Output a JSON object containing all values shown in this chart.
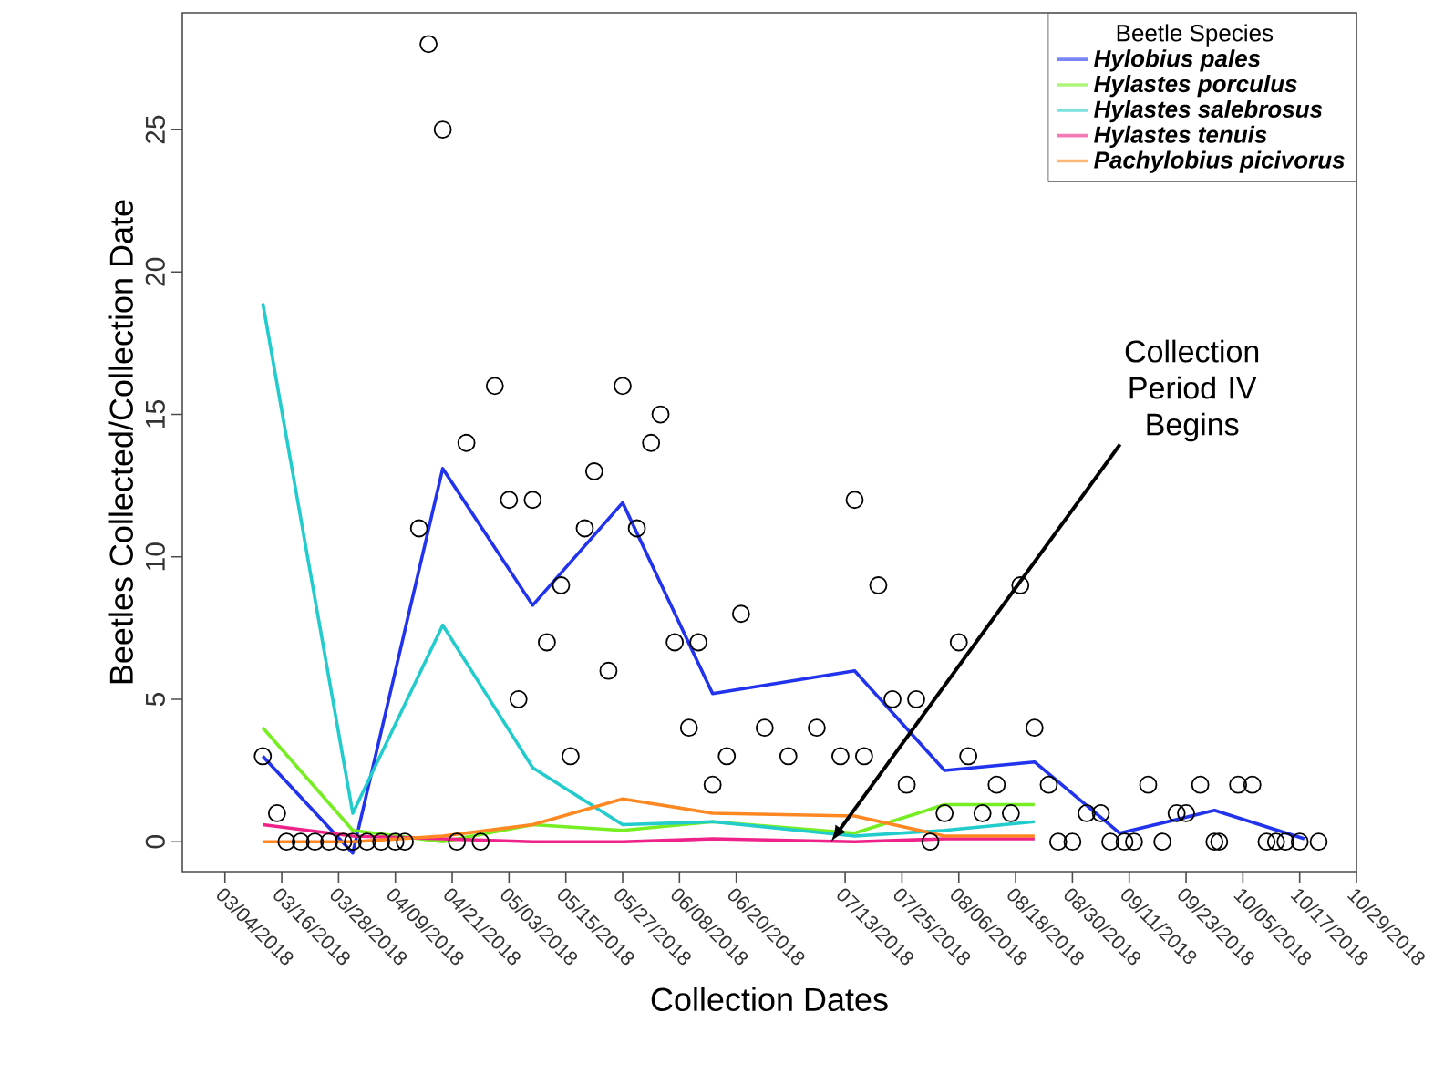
{
  "chart_data": {
    "type": "line",
    "xlabel": "Collection Dates",
    "ylabel": "Beetles Collected/Collection Date",
    "legend_title": "Beetle Species",
    "legend": "top right",
    "xlim": [
      "2018-02-23",
      "2018-10-29"
    ],
    "ylim": [
      -1.05,
      29.1
    ],
    "xticks": [
      {
        "value": "2018-03-04",
        "label": "03/04/2018"
      },
      {
        "value": "2018-03-16",
        "label": "03/16/2018"
      },
      {
        "value": "2018-03-28",
        "label": "03/28/2018"
      },
      {
        "value": "2018-04-09",
        "label": "04/09/2018"
      },
      {
        "value": "2018-04-21",
        "label": "04/21/2018"
      },
      {
        "value": "2018-05-03",
        "label": "05/03/2018"
      },
      {
        "value": "2018-05-15",
        "label": "05/15/2018"
      },
      {
        "value": "2018-05-27",
        "label": "05/27/2018"
      },
      {
        "value": "2018-06-08",
        "label": "06/08/2018"
      },
      {
        "value": "2018-06-20",
        "label": "06/20/2018"
      },
      {
        "value": "2018-07-13",
        "label": "07/13/2018"
      },
      {
        "value": "2018-07-25",
        "label": "07/25/2018"
      },
      {
        "value": "2018-08-06",
        "label": "08/06/2018"
      },
      {
        "value": "2018-08-18",
        "label": "08/18/2018"
      },
      {
        "value": "2018-08-30",
        "label": "08/30/2018"
      },
      {
        "value": "2018-09-11",
        "label": "09/11/2018"
      },
      {
        "value": "2018-09-23",
        "label": "09/23/2018"
      },
      {
        "value": "2018-10-05",
        "label": "10/05/2018"
      },
      {
        "value": "2018-10-17",
        "label": "10/17/2018"
      },
      {
        "value": "2018-10-29",
        "label": "10/29/2018"
      }
    ],
    "yticks": [
      0,
      5,
      10,
      15,
      20,
      25
    ],
    "annotations": [
      {
        "text": "Collection Period IV Begins",
        "x": "2018-07-10",
        "y": 0
      }
    ],
    "series": [
      {
        "type": "scatter",
        "marker": "circle",
        "color": "#000000",
        "x": [
          "2018-03-12",
          "2018-03-15",
          "2018-03-17",
          "2018-03-20",
          "2018-03-23",
          "2018-03-26",
          "2018-03-29",
          "2018-03-31",
          "2018-04-03",
          "2018-04-06",
          "2018-04-09",
          "2018-04-11",
          "2018-04-14",
          "2018-04-16",
          "2018-04-19",
          "2018-04-22",
          "2018-04-24",
          "2018-04-27",
          "2018-04-30",
          "2018-05-03",
          "2018-05-05",
          "2018-05-08",
          "2018-05-11",
          "2018-05-14",
          "2018-05-16",
          "2018-05-19",
          "2018-05-21",
          "2018-05-24",
          "2018-05-27",
          "2018-05-30",
          "2018-06-02",
          "2018-06-04",
          "2018-06-07",
          "2018-06-10",
          "2018-06-12",
          "2018-06-15",
          "2018-06-18",
          "2018-06-21",
          "2018-06-26",
          "2018-07-01",
          "2018-07-07",
          "2018-07-12",
          "2018-07-15",
          "2018-07-17",
          "2018-07-20",
          "2018-07-23",
          "2018-07-26",
          "2018-07-28",
          "2018-07-31",
          "2018-08-03",
          "2018-08-06",
          "2018-08-08",
          "2018-08-11",
          "2018-08-14",
          "2018-08-17",
          "2018-08-19",
          "2018-08-22",
          "2018-08-25",
          "2018-08-27",
          "2018-08-30",
          "2018-09-02",
          "2018-09-05",
          "2018-09-07",
          "2018-09-10",
          "2018-09-12",
          "2018-09-15",
          "2018-09-18",
          "2018-09-21",
          "2018-09-23",
          "2018-09-26",
          "2018-09-29",
          "2018-09-30",
          "2018-10-04",
          "2018-10-07",
          "2018-10-10",
          "2018-10-12",
          "2018-10-14",
          "2018-10-17",
          "2018-10-21"
        ],
        "values": [
          3,
          1,
          0,
          0,
          0,
          0,
          0,
          0,
          0,
          0,
          0,
          0,
          11,
          28,
          25,
          0,
          14,
          0,
          16,
          12,
          5,
          12,
          7,
          9,
          3,
          11,
          13,
          6,
          16,
          11,
          14,
          15,
          7,
          4,
          7,
          2,
          3,
          8,
          4,
          3,
          4,
          3,
          12,
          3,
          9,
          5,
          2,
          5,
          0,
          1,
          7,
          3,
          1,
          2,
          1,
          9,
          4,
          2,
          0,
          0,
          1,
          1,
          0,
          0,
          0,
          2,
          0,
          1,
          1,
          2,
          0,
          0,
          2,
          2,
          0,
          0,
          0,
          0,
          0
        ]
      },
      {
        "name": "Hylobius pales",
        "color": "#2233ee",
        "x": [
          "2018-03-12",
          "2018-03-31",
          "2018-04-19",
          "2018-05-08",
          "2018-05-27",
          "2018-06-15",
          "2018-07-15",
          "2018-08-03",
          "2018-08-22",
          "2018-09-09",
          "2018-09-29",
          "2018-10-18"
        ],
        "values": [
          3.0,
          -0.4,
          13.1,
          8.3,
          11.9,
          5.2,
          6.0,
          2.5,
          2.8,
          0.3,
          1.1,
          0.1
        ]
      },
      {
        "name": "Hylastes porculus",
        "color": "#77ee22",
        "x": [
          "2018-03-12",
          "2018-03-31",
          "2018-04-19",
          "2018-05-08",
          "2018-05-27",
          "2018-06-15",
          "2018-07-15",
          "2018-08-03",
          "2018-08-22"
        ],
        "values": [
          4.0,
          0.4,
          0.0,
          0.6,
          0.4,
          0.7,
          0.3,
          1.3,
          1.3
        ]
      },
      {
        "name": "Hylastes salebrosus",
        "color": "#22cccc",
        "x": [
          "2018-03-12",
          "2018-03-31",
          "2018-04-19",
          "2018-05-08",
          "2018-05-27",
          "2018-06-15",
          "2018-07-15",
          "2018-08-03",
          "2018-08-22"
        ],
        "values": [
          18.9,
          1.0,
          7.6,
          2.6,
          0.6,
          0.7,
          0.2,
          0.4,
          0.7
        ]
      },
      {
        "name": "Hylastes tenuis",
        "color": "#ee2288",
        "x": [
          "2018-03-12",
          "2018-03-31",
          "2018-04-19",
          "2018-05-08",
          "2018-05-27",
          "2018-06-15",
          "2018-07-15",
          "2018-08-03",
          "2018-08-22"
        ],
        "values": [
          0.6,
          0.2,
          0.1,
          0.0,
          0.0,
          0.1,
          0.0,
          0.1,
          0.1
        ]
      },
      {
        "name": "Pachylobius picivorus",
        "color": "#ff8822",
        "x": [
          "2018-03-12",
          "2018-03-31",
          "2018-04-19",
          "2018-05-08",
          "2018-05-27",
          "2018-06-15",
          "2018-07-15",
          "2018-08-03",
          "2018-08-22"
        ],
        "values": [
          0.0,
          0.0,
          0.2,
          0.6,
          1.5,
          1.0,
          0.9,
          0.2,
          0.2
        ]
      }
    ]
  }
}
